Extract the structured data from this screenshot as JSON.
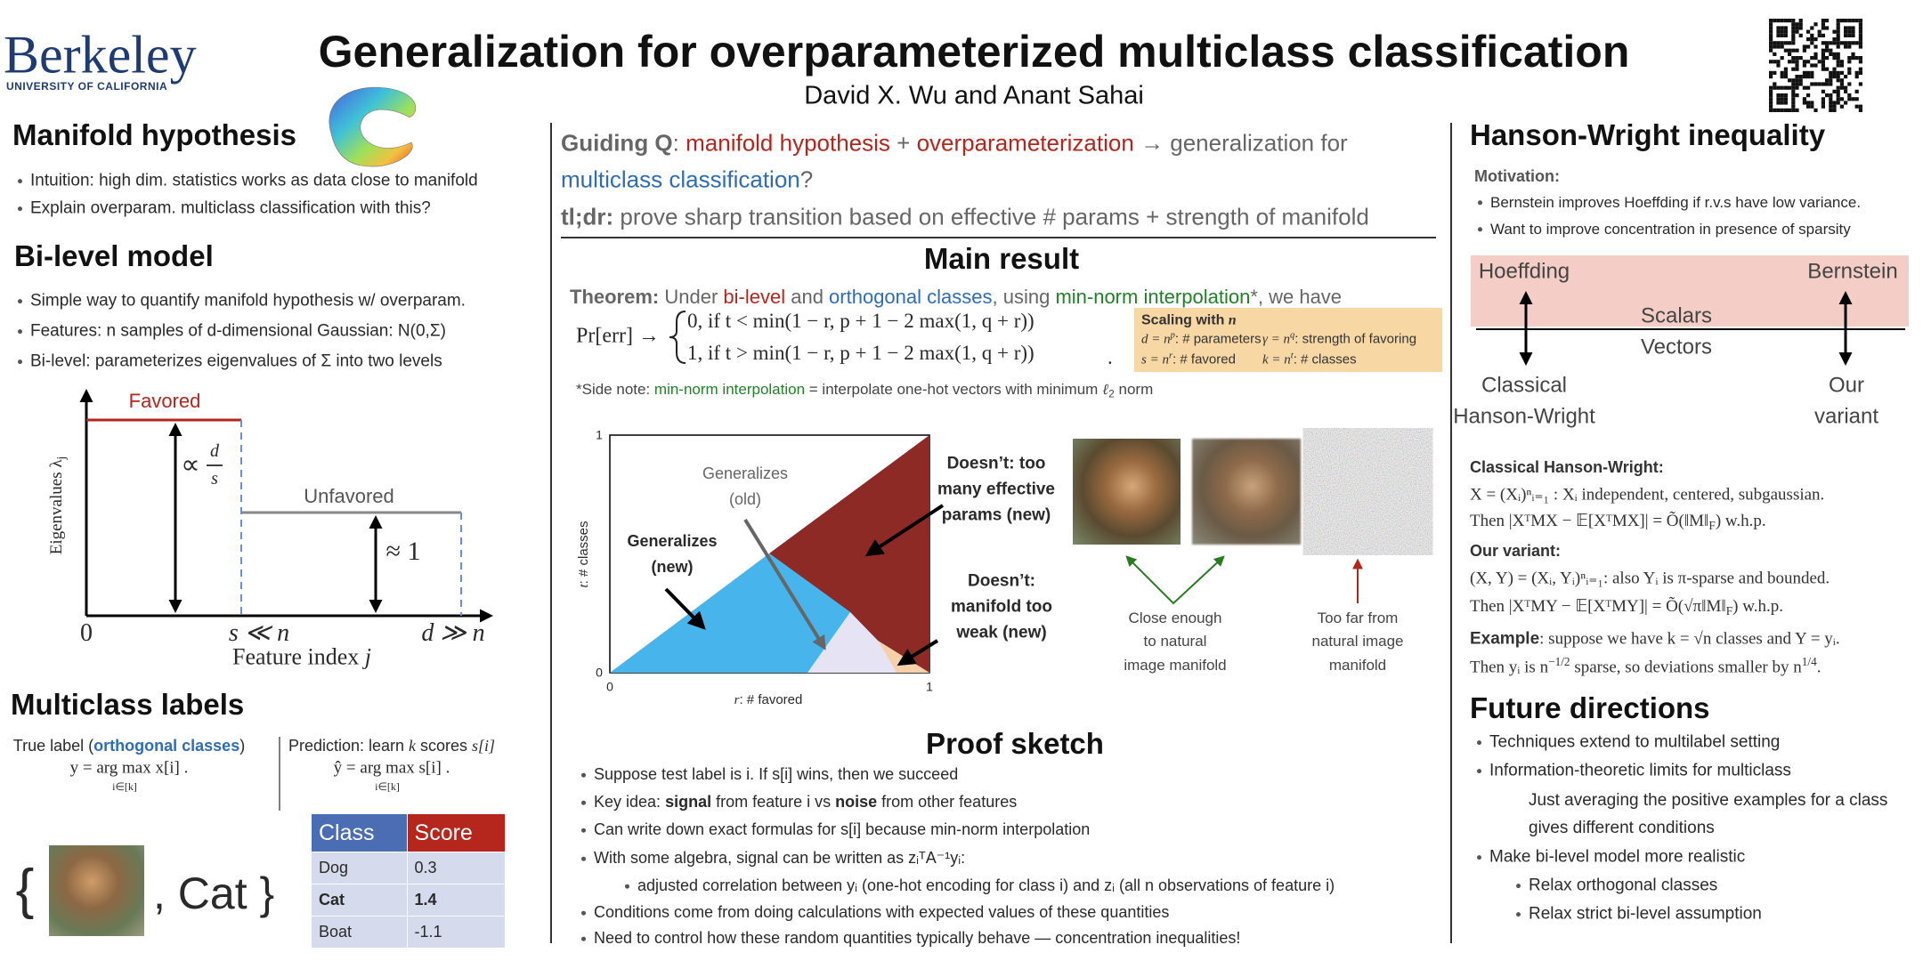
{
  "header": {
    "logo": "Berkeley",
    "logo_subtitle": "UNIVERSITY OF CALIFORNIA",
    "title": "Generalization for overparameterized multiclass classification",
    "authors": "David X. Wu and Anant Sahai"
  },
  "manifold_hypothesis": {
    "heading": "Manifold hypothesis",
    "bullets": [
      "Intuition: high dim. statistics works as data close to manifold",
      "Explain overparam. multiclass classification with this?"
    ]
  },
  "bilevel_model": {
    "heading": "Bi-level model",
    "bullets": [
      "Simple way to quantify manifold hypothesis w/ overparam.",
      "Features: n samples of d-dimensional Gaussian: N(0,Σ)",
      "Bi-level: parameterizes eigenvalues of Σ into two levels"
    ],
    "figure": {
      "y_label": [
        "Eigenvalues λ",
        "j"
      ],
      "x_label": [
        "Feature index ",
        "j"
      ],
      "favored": "Favored",
      "unfavored": "Unfavored",
      "favored_level": [
        "∝",
        "d",
        "s"
      ],
      "unfavored_level": "≈ 1",
      "x_ticks": [
        "0",
        "s ≪ n",
        "d ≫ n"
      ]
    }
  },
  "multiclass_labels": {
    "heading": "Multiclass labels",
    "true_label": [
      "True label (",
      "orthogonal classes",
      ")"
    ],
    "true_formula": [
      "y = arg max x[i] .",
      "i∈[k]"
    ],
    "prediction": [
      "Prediction: learn ",
      "k",
      " scores ",
      "s[i]"
    ],
    "prediction_formula": [
      "ŷ = arg max s[i] .",
      "i∈[k]"
    ],
    "example": [
      "{",
      ", Cat }"
    ],
    "table": {
      "header": [
        "Class",
        "Score"
      ],
      "rows": [
        [
          "Dog",
          "0.3"
        ],
        [
          "Cat",
          "1.4"
        ],
        [
          "Boat",
          "-1.1"
        ]
      ]
    }
  },
  "guiding": {
    "question": [
      "Guiding Q",
      ": ",
      "manifold hypothesis",
      " + ",
      "overparameterization",
      " → generalization for ",
      "multiclass classification",
      "?"
    ],
    "tldr": [
      "tl;dr:",
      " prove sharp transition based on effective # params + strength of manifold"
    ]
  },
  "main_result": {
    "heading": "Main result",
    "theorem": [
      "Theorem:",
      " Under ",
      "bi-level",
      " and ",
      "orthogonal classes",
      ", using ",
      "min-norm interpolation",
      "*, we have"
    ],
    "formula": {
      "lhs": "Pr[err] →",
      "cases": [
        "0, if t < min(1 − r, p + 1 − 2 max(1, q + r))",
        "1, if t > min(1 − r, p + 1 − 2 max(1, q + r))"
      ],
      "end": "."
    },
    "scaling": {
      "title": [
        "Scaling with ",
        "n"
      ],
      "items": [
        [
          "d = n",
          "p",
          ": # parameters"
        ],
        [
          "γ = n",
          "q",
          ": strength of favoring"
        ],
        [
          "s = n",
          "r",
          ": # favored"
        ],
        [
          "k = n",
          "t",
          ": # classes"
        ]
      ]
    },
    "side_note": [
      "*Side note: ",
      "min-norm interpolation",
      " = interpolate one-hot vectors with minimum ",
      "ℓ",
      "2",
      " norm"
    ],
    "phase_diagram": {
      "y_label": [
        "t",
        ": # classes"
      ],
      "x_label": [
        "r",
        ": # favored"
      ],
      "y_ticks": [
        "0",
        "1"
      ],
      "x_ticks": [
        "0",
        "1"
      ],
      "regions": {
        "generalizes_old": [
          "Generalizes",
          "(old)"
        ],
        "generalizes_new": [
          "Generalizes",
          "(new)"
        ],
        "too_many_params": [
          "Doesn’t: too",
          "many effective",
          "params (new)"
        ],
        "manifold_too_weak": [
          "Doesn’t:",
          "manifold too",
          "weak (new)"
        ]
      }
    },
    "images": {
      "close": [
        "Close enough",
        "to natural",
        "image manifold"
      ],
      "far": [
        "Too far from",
        "natural image",
        "manifold"
      ]
    }
  },
  "proof_sketch": {
    "heading": "Proof sketch",
    "bullets": [
      [
        "Suppose test label is i. If s[i] wins, then we succeed"
      ],
      [
        "Key idea: ",
        "signal",
        " from feature i vs ",
        "noise",
        " from other features"
      ],
      [
        "Can write down exact formulas for s[i] because min-norm interpolation"
      ],
      [
        "With some algebra, signal can be written as zᵢᵀA⁻¹yᵢ:"
      ],
      [
        "adjusted correlation between yᵢ (one-hot encoding for class i) and zᵢ (all n observations of feature i)"
      ],
      [
        "Conditions come from doing calculations with expected values of these quantities"
      ],
      [
        "Need to control how these random quantities typically behave — concentration inequalities!"
      ]
    ]
  },
  "hanson_wright": {
    "heading": "Hanson-Wright inequality",
    "motivation": "Motivation:",
    "bullets": [
      "Bernstein improves Hoeffding if r.v.s have low variance.",
      "Want to improve concentration in presence of sparsity"
    ],
    "diagram": {
      "hoeffding": "Hoeffding",
      "bernstein": "Bernstein",
      "scalars": "Scalars",
      "vectors": "Vectors",
      "classical": [
        "Classical",
        "Hanson-Wright"
      ],
      "variant": [
        "Our",
        "variant"
      ]
    },
    "classical": {
      "heading": "Classical Hanson-Wright:",
      "lines": [
        [
          "X = (Xᵢ)ⁿᵢ₌₁ : Xᵢ independent, centered, subgaussian."
        ],
        [
          "Then |XᵀMX − 𝔼[XᵀMX]| = Õ(‖M‖",
          "F",
          ") w.h.p."
        ]
      ]
    },
    "variant": {
      "heading": "Our variant:",
      "lines": [
        [
          "(X, Y) = (Xᵢ, Yᵢ)ⁿᵢ₌₁: also Yᵢ is π-sparse and bounded."
        ],
        [
          "Then |XᵀMY − 𝔼[XᵀMY]| = Õ(√π‖M‖",
          "F",
          ") w.h.p."
        ]
      ]
    },
    "example": [
      [
        "Example",
        ": suppose we have k = √n classes and Y = yᵢ."
      ],
      [
        "Then yᵢ is n",
        "−1/2",
        " sparse, so deviations smaller by n",
        "1/4",
        "."
      ]
    ]
  },
  "future_directions": {
    "heading": "Future directions",
    "bullets": [
      "Techniques extend to multilabel setting",
      "Information-theoretic limits for multiclass",
      "Just averaging the positive examples for a class gives different conditions",
      "Make bi-level model more realistic",
      "Relax orthogonal classes",
      "Relax strict bi-level assumption"
    ]
  }
}
